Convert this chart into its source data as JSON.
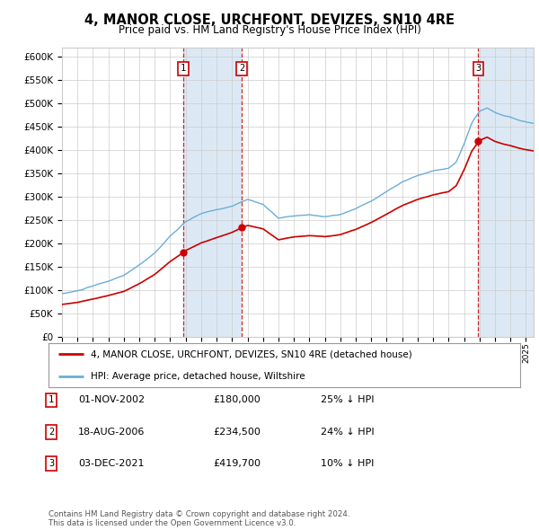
{
  "title": "4, MANOR CLOSE, URCHFONT, DEVIZES, SN10 4RE",
  "subtitle": "Price paid vs. HM Land Registry's House Price Index (HPI)",
  "ylim": [
    0,
    620000
  ],
  "yticks": [
    0,
    50000,
    100000,
    150000,
    200000,
    250000,
    300000,
    350000,
    400000,
    450000,
    500000,
    550000,
    600000
  ],
  "ytick_labels": [
    "£0",
    "£50K",
    "£100K",
    "£150K",
    "£200K",
    "£250K",
    "£300K",
    "£350K",
    "£400K",
    "£450K",
    "£500K",
    "£550K",
    "£600K"
  ],
  "sale_dates_num": [
    2002.84,
    2006.63,
    2021.92
  ],
  "sale_prices": [
    180000,
    234500,
    419700
  ],
  "sale_labels": [
    "1",
    "2",
    "3"
  ],
  "hpi_color": "#6baed6",
  "price_color": "#cc0000",
  "shade_color": "#dce9f5",
  "dashed_color": "#cc0000",
  "legend_line1": "4, MANOR CLOSE, URCHFONT, DEVIZES, SN10 4RE (detached house)",
  "legend_line2": "HPI: Average price, detached house, Wiltshire",
  "table_rows": [
    {
      "num": "1",
      "date": "01-NOV-2002",
      "price": "£180,000",
      "pct": "25% ↓ HPI"
    },
    {
      "num": "2",
      "date": "18-AUG-2006",
      "price": "£234,500",
      "pct": "24% ↓ HPI"
    },
    {
      "num": "3",
      "date": "03-DEC-2021",
      "price": "£419,700",
      "pct": "10% ↓ HPI"
    }
  ],
  "footnote": "Contains HM Land Registry data © Crown copyright and database right 2024.\nThis data is licensed under the Open Government Licence v3.0.",
  "background_color": "#ffffff",
  "grid_color": "#cccccc",
  "xlim_start": 1995,
  "xlim_end": 2025.5
}
